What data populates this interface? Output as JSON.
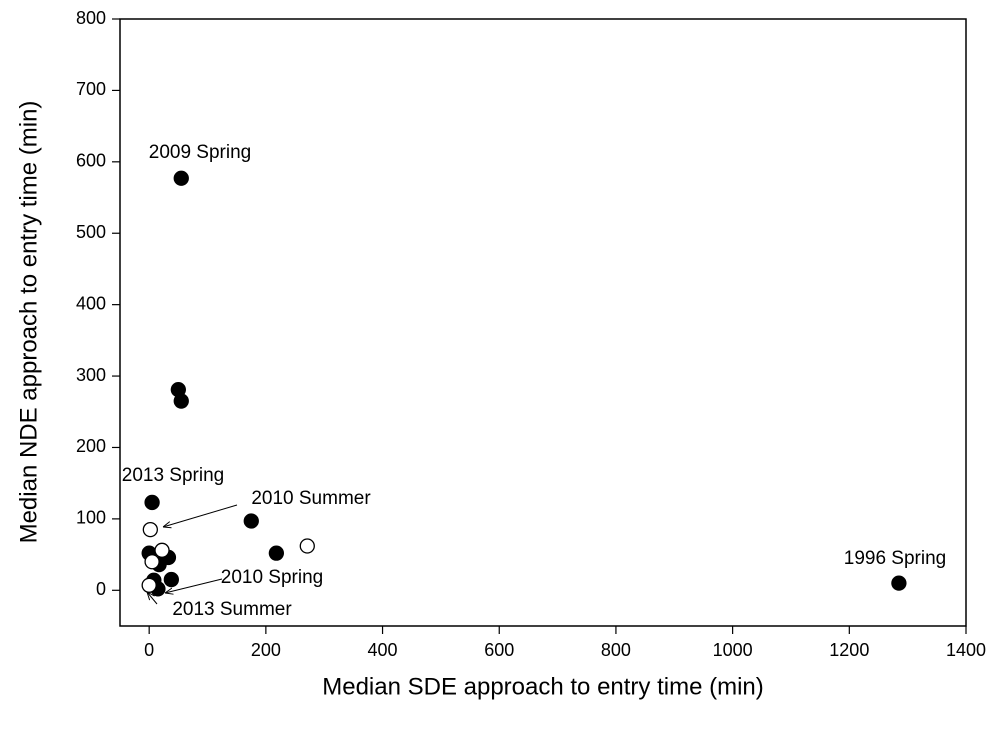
{
  "chart_data": {
    "type": "scatter",
    "xlabel": "Median SDE approach to entry time (min)",
    "ylabel": "Median NDE approach to entry time (min)",
    "xlim": [
      -50,
      1400
    ],
    "xticks": [
      0,
      200,
      400,
      600,
      800,
      1000,
      1200,
      1400
    ],
    "ylim": [
      -50,
      800
    ],
    "yticks": [
      0,
      100,
      200,
      300,
      400,
      500,
      600,
      700,
      800
    ],
    "grid": false,
    "series": [
      {
        "color": "#000000",
        "fill": "#000000",
        "x": [
          55,
          50,
          55,
          5,
          175,
          218,
          0,
          33,
          17,
          8,
          38,
          15,
          1285
        ],
        "y": [
          577,
          281,
          265,
          123,
          97,
          52,
          52,
          46,
          36,
          14,
          15,
          2,
          10
        ]
      },
      {
        "color": "#000000",
        "fill": "#ffffff",
        "x": [
          2,
          271,
          22,
          5,
          0
        ],
        "y": [
          85,
          62,
          56,
          40,
          7
        ]
      }
    ],
    "annotations": [
      "2009 Spring",
      "2013 Spring",
      "2010 Summer",
      "2010 Spring",
      "1996 Spring",
      "2013 Summer"
    ]
  }
}
